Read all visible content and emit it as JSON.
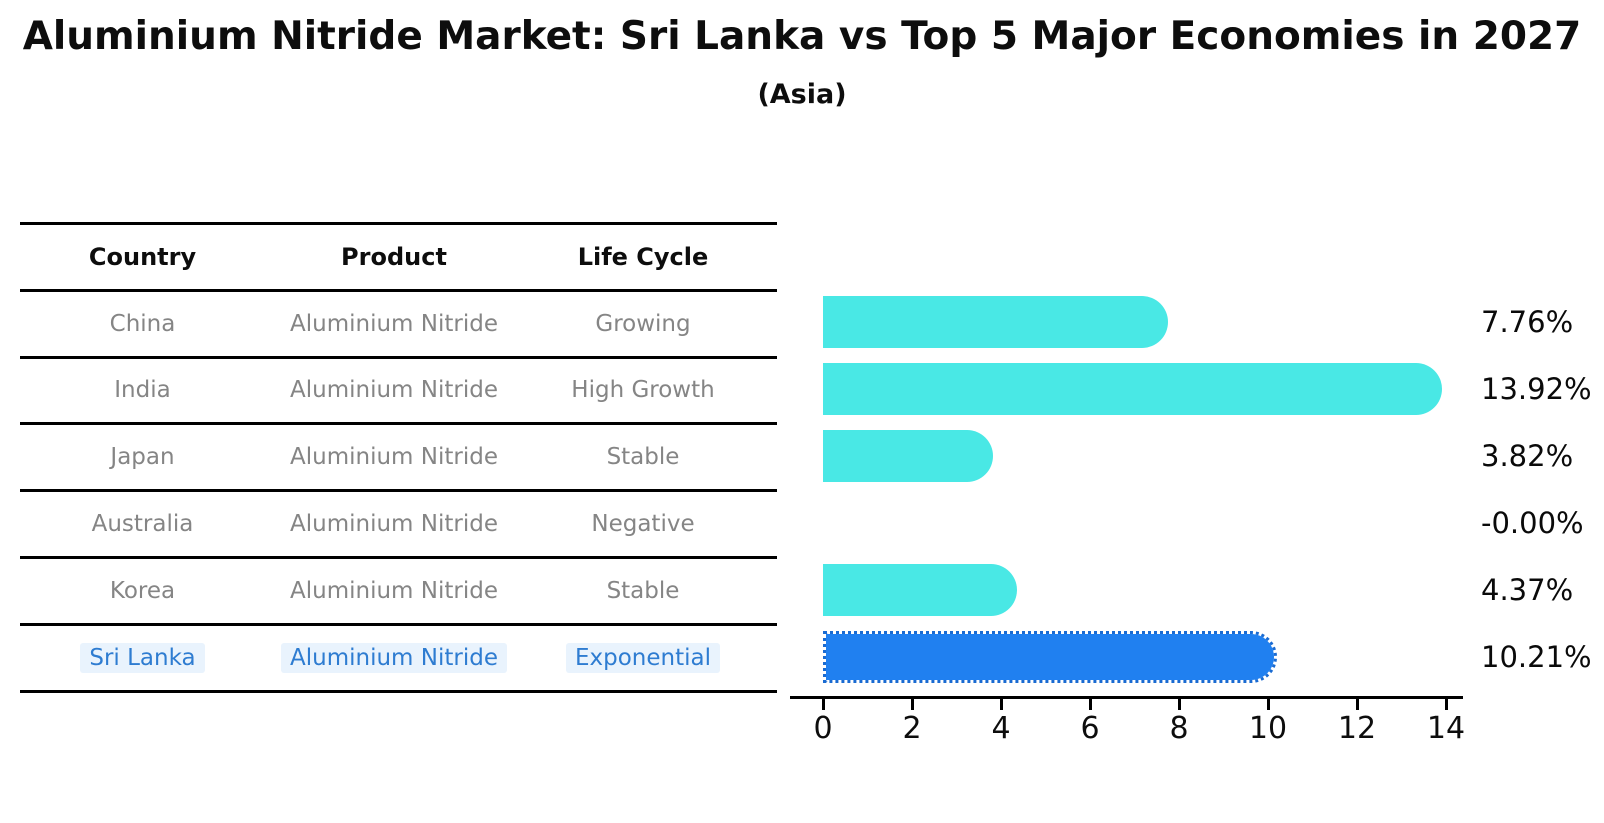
{
  "header": {
    "title": "Aluminium Nitride Market: Sri Lanka vs Top 5 Major Economies in 2027",
    "subtitle": "(Asia)"
  },
  "table": {
    "columns": [
      "Country",
      "Product",
      "Life Cycle"
    ],
    "rows": [
      {
        "country": "China",
        "product": "Aluminium Nitride",
        "life_cycle": "Growing",
        "highlight": false
      },
      {
        "country": "India",
        "product": "Aluminium Nitride",
        "life_cycle": "High Growth",
        "highlight": false
      },
      {
        "country": "Japan",
        "product": "Aluminium Nitride",
        "life_cycle": "Stable",
        "highlight": false
      },
      {
        "country": "Australia",
        "product": "Aluminium Nitride",
        "life_cycle": "Negative",
        "highlight": false
      },
      {
        "country": "Korea",
        "product": "Aluminium Nitride",
        "life_cycle": "Stable",
        "highlight": false
      },
      {
        "country": "Sri Lanka",
        "product": "Aluminium Nitride",
        "life_cycle": "Exponential",
        "highlight": true
      }
    ]
  },
  "chart_data": {
    "type": "bar",
    "orientation": "horizontal",
    "title": "Aluminium Nitride Market: Sri Lanka vs Top 5 Major Economies in 2027 (Asia)",
    "categories": [
      "China",
      "India",
      "Japan",
      "Australia",
      "Korea",
      "Sri Lanka"
    ],
    "values": [
      7.76,
      13.92,
      3.82,
      -0.0,
      4.37,
      10.21
    ],
    "value_labels": [
      "7.76%",
      "13.92%",
      "3.82%",
      "-0.00%",
      "4.37%",
      "10.21%"
    ],
    "xlabel": "",
    "ylabel": "",
    "xlim": [
      0,
      14
    ],
    "x_ticks": [
      0,
      2,
      4,
      6,
      8,
      10,
      12,
      14
    ],
    "grid": false,
    "legend": false,
    "bar_color": "#49E8E5",
    "highlight_bar_color": "#2080F0",
    "highlight_index": 5
  },
  "colors": {
    "bar_cyan": "#49E8E5",
    "bar_blue": "#2080F0",
    "bar_blue_edge": "#1a6bd2",
    "table_text_gray": "#858585",
    "highlight_text_blue": "#2e7cd1",
    "highlight_bg": "#e9f3fd",
    "line_black": "#000000"
  }
}
